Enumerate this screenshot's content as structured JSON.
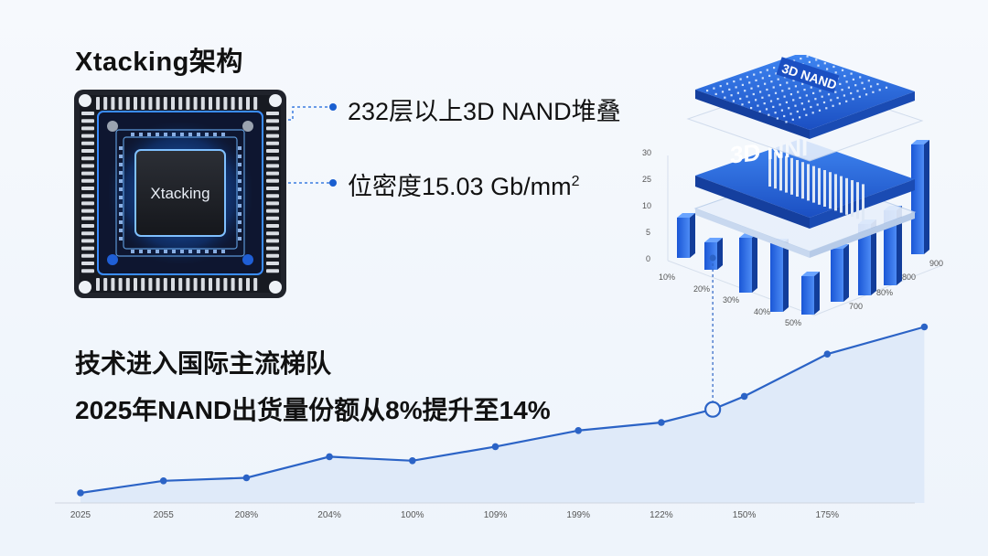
{
  "title": "Xtacking架构",
  "chip_label": "Xtacking",
  "specs": {
    "layers": "232层以上3D NAND堆叠",
    "density_prefix": "位密度15.03 Gb/mm",
    "density_sup": "2"
  },
  "stack_labels": {
    "top": "3D NAND",
    "middle": "3D NNI"
  },
  "headline": "技术进入国际主流梯队",
  "subheadline": "2025年NAND出货量份额从8%提升至14%",
  "chart_data": [
    {
      "type": "bar",
      "y_ticks": [
        "30",
        "25",
        "10",
        "5",
        "0"
      ],
      "x_ticks": [
        "10%",
        "20%",
        "30%",
        "40%",
        "50%"
      ],
      "z_ticks": [
        "900",
        "800",
        "80%",
        "700"
      ]
    },
    {
      "type": "line",
      "categories": [
        "2025",
        "2055",
        "208%",
        "204%",
        "100%",
        "109%",
        "199%",
        "122%",
        "150%",
        "175%"
      ],
      "values": [
        1.0,
        2.2,
        2.5,
        4.6,
        4.2,
        5.6,
        7.2,
        8.0,
        10.6,
        14.8
      ],
      "extra_points": [
        {
          "after_index": 7,
          "value": 9.3,
          "highlight": true
        },
        {
          "after_index": 9,
          "value": 17.5,
          "highlight": false
        }
      ],
      "grid": false
    }
  ],
  "colors": {
    "accent": "#1a5fd0",
    "line": "#2b63c6",
    "fill": "#dce8f8",
    "chip_dark": "#1b1e27",
    "glow": "#4aa6ff"
  }
}
